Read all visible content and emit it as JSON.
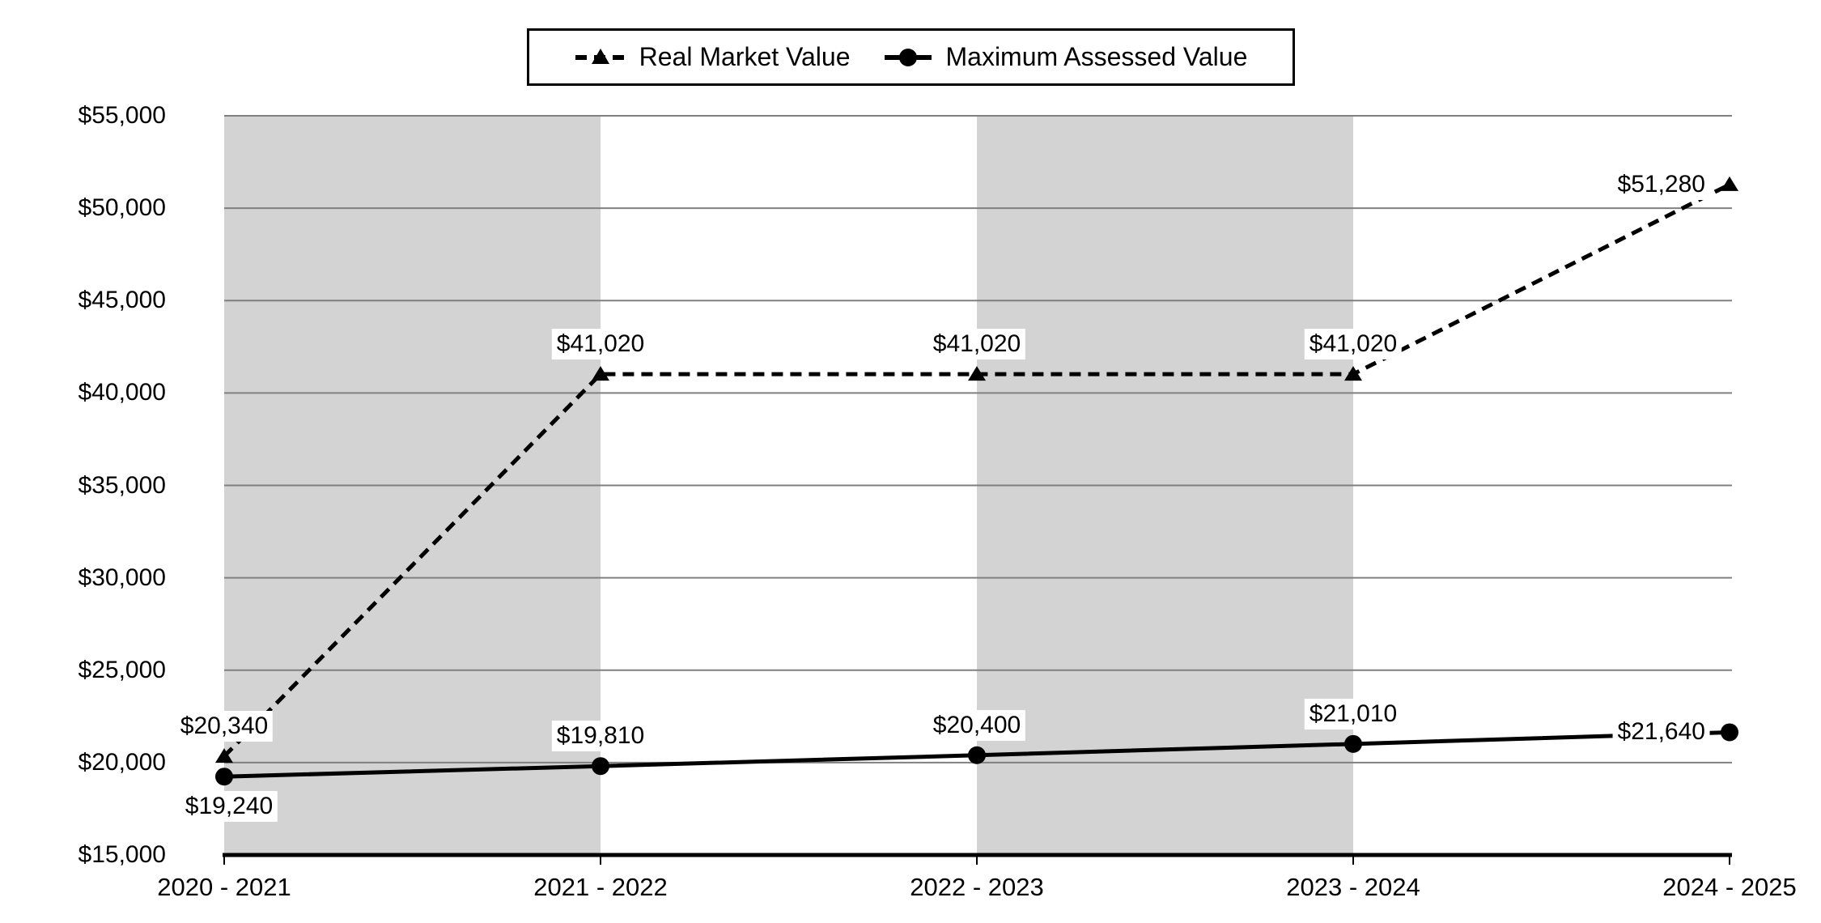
{
  "chart_data": {
    "type": "line",
    "title": "",
    "categories": [
      "2020 - 2021",
      "2021 - 2022",
      "2022 - 2023",
      "2023 - 2024",
      "2024 - 2025"
    ],
    "series": [
      {
        "name": "Real Market Value",
        "values": [
          20340,
          41020,
          41020,
          41020,
          51280
        ],
        "labels": [
          "$20,340",
          "$41,020",
          "$41,020",
          "$41,020",
          "$51,280"
        ],
        "label_placement": [
          "above",
          "above",
          "above",
          "above",
          "left"
        ],
        "line_style": "dashed",
        "marker": "triangle",
        "color": "#000000"
      },
      {
        "name": "Maximum Assessed Value",
        "values": [
          19240,
          19810,
          20400,
          21010,
          21640
        ],
        "labels": [
          "$19,240",
          "$19,810",
          "$20,400",
          "$21,010",
          "$21,640"
        ],
        "label_placement": [
          "below",
          "above",
          "above",
          "above",
          "left"
        ],
        "line_style": "solid",
        "marker": "circle",
        "color": "#000000"
      }
    ],
    "y_axis": {
      "min": 15000,
      "max": 55000,
      "step": 5000,
      "tick_labels": [
        "$55,000",
        "$50,000",
        "$45,000",
        "$40,000",
        "$35,000",
        "$30,000",
        "$25,000",
        "$20,000",
        "$15,000"
      ]
    },
    "x_axis": {
      "tick_labels": [
        "2020 - 2021",
        "2021 - 2022",
        "2022 - 2023",
        "2023 - 2024",
        "2024 - 2025"
      ]
    },
    "legend_position": "top",
    "grid": true,
    "plot_band_category_spans": [
      [
        0,
        1
      ],
      [
        2,
        3
      ]
    ],
    "colors": {
      "line": "#000000",
      "gridline": "#808080",
      "band": "#d3d3d3",
      "axis": "#000000",
      "background": "#ffffff",
      "label_background": "#ffffff",
      "text": "#000000"
    }
  }
}
